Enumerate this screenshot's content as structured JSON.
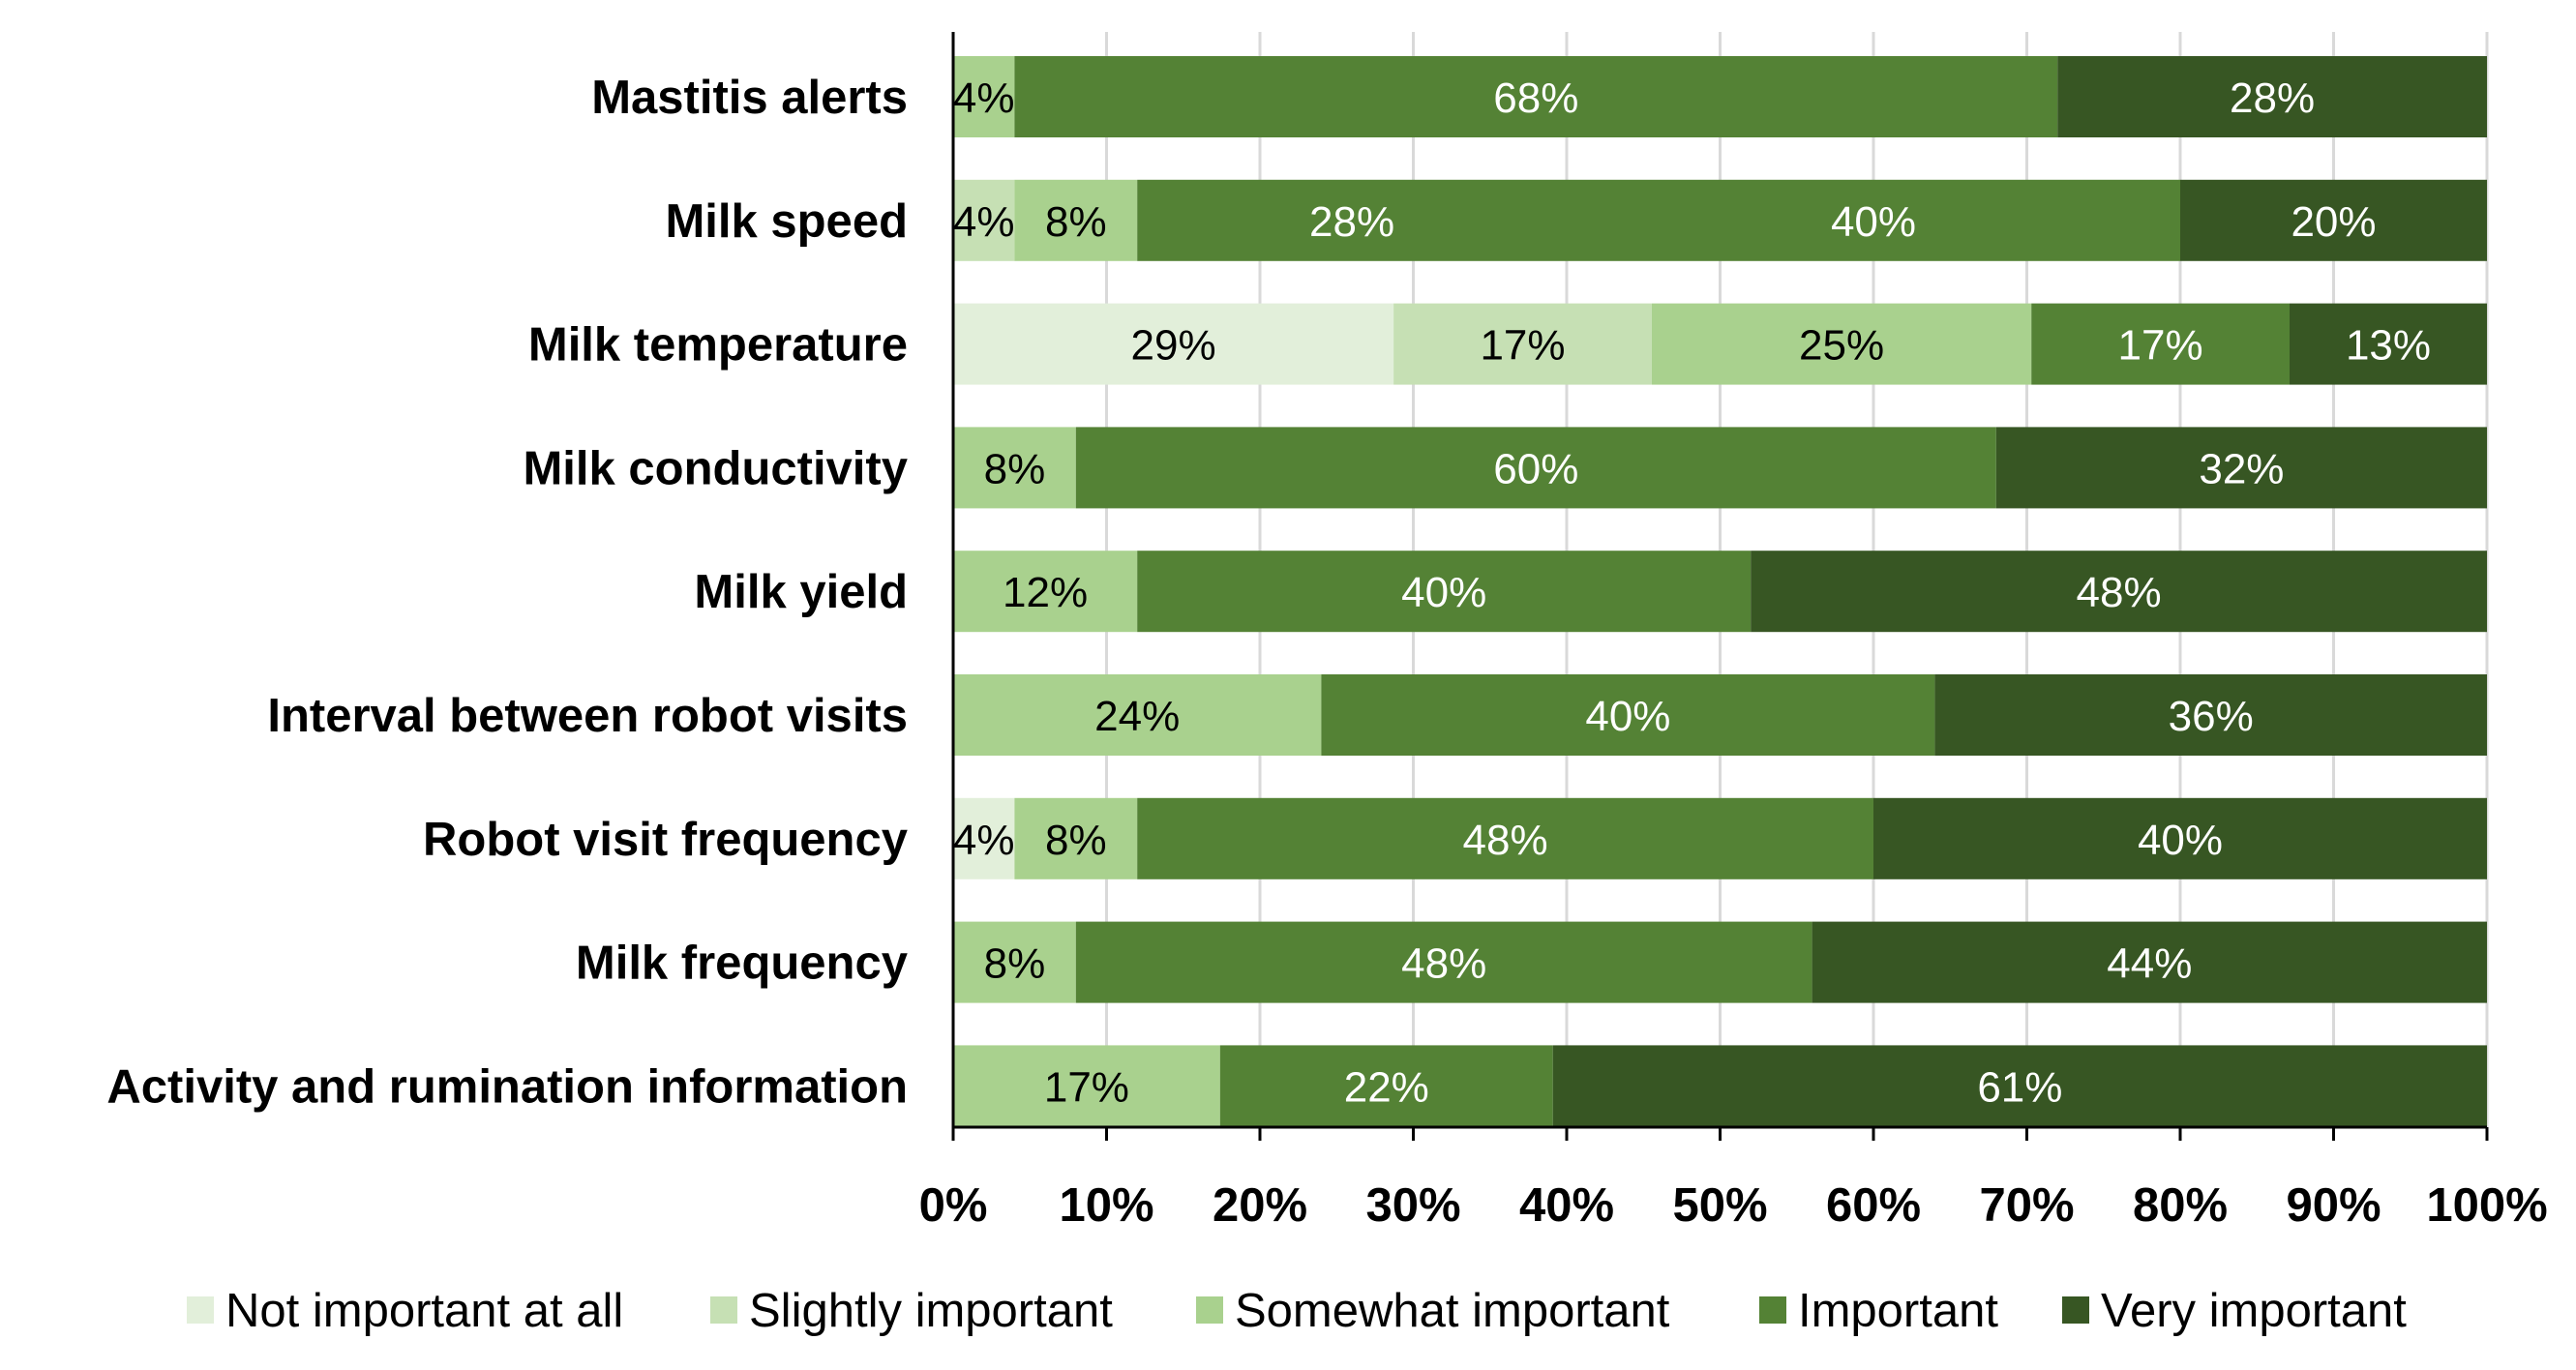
{
  "chart_data": {
    "type": "stacked-bar-horizontal-100",
    "title": "",
    "xlabel": "",
    "ylabel": "",
    "xlim": [
      0,
      100
    ],
    "x_ticks": [
      "0%",
      "10%",
      "20%",
      "30%",
      "40%",
      "50%",
      "60%",
      "70%",
      "80%",
      "90%",
      "100%"
    ],
    "grid": "vertical",
    "legend_position": "bottom",
    "categories": [
      "Mastitis alerts",
      "Milk speed",
      "Milk temperature",
      "Milk conductivity",
      "Milk yield",
      "Interval between robot visits",
      "Robot visit frequency",
      "Milk frequency",
      "Activity and rumination information"
    ],
    "series": [
      {
        "name": "Not important at all",
        "color": "#e2efda",
        "label_color": "#000000",
        "values": [
          0,
          0,
          29,
          0,
          0,
          0,
          4,
          0,
          0
        ],
        "labels": [
          "",
          "",
          "29%",
          "",
          "",
          "",
          "4%",
          "",
          ""
        ]
      },
      {
        "name": "Slightly important",
        "color": "#c6e0b4",
        "label_color": "#000000",
        "values": [
          0,
          4,
          17,
          0,
          0,
          0,
          0,
          0,
          0
        ],
        "labels": [
          "",
          "4%",
          "17%",
          "",
          "",
          "",
          "",
          "",
          ""
        ]
      },
      {
        "name": "Somewhat important",
        "color": "#a9d18e",
        "label_color": "#000000",
        "values": [
          4,
          8,
          25,
          8,
          12,
          24,
          8,
          8,
          17.4
        ],
        "labels": [
          "4%",
          "8%",
          "25%",
          "8%",
          "12%",
          "24%",
          "8%",
          "8%",
          "17%"
        ]
      },
      {
        "name": "Important",
        "color": "#548235",
        "label_color": "#ffffff",
        "values": [
          68,
          40,
          17,
          60,
          40,
          40,
          48,
          48,
          21.7
        ],
        "labels": [
          "68%",
          "40%",
          "17%",
          "60%",
          "40%",
          "40%",
          "48%",
          "48%",
          "22%"
        ]
      },
      {
        "name": "Very important",
        "color": "#375623",
        "label_color": "#ffffff",
        "values": [
          28,
          20,
          13,
          32,
          48,
          36,
          40,
          44,
          60.9
        ],
        "labels": [
          "28%",
          "20%",
          "13%",
          "32%",
          "48%",
          "36%",
          "40%",
          "44%",
          "61%"
        ]
      }
    ],
    "extra_segments": [
      {
        "category_index": 1,
        "after_series": 2,
        "value": 28,
        "label": "28%",
        "color": "#548235",
        "label_color": "#ffffff"
      }
    ]
  }
}
